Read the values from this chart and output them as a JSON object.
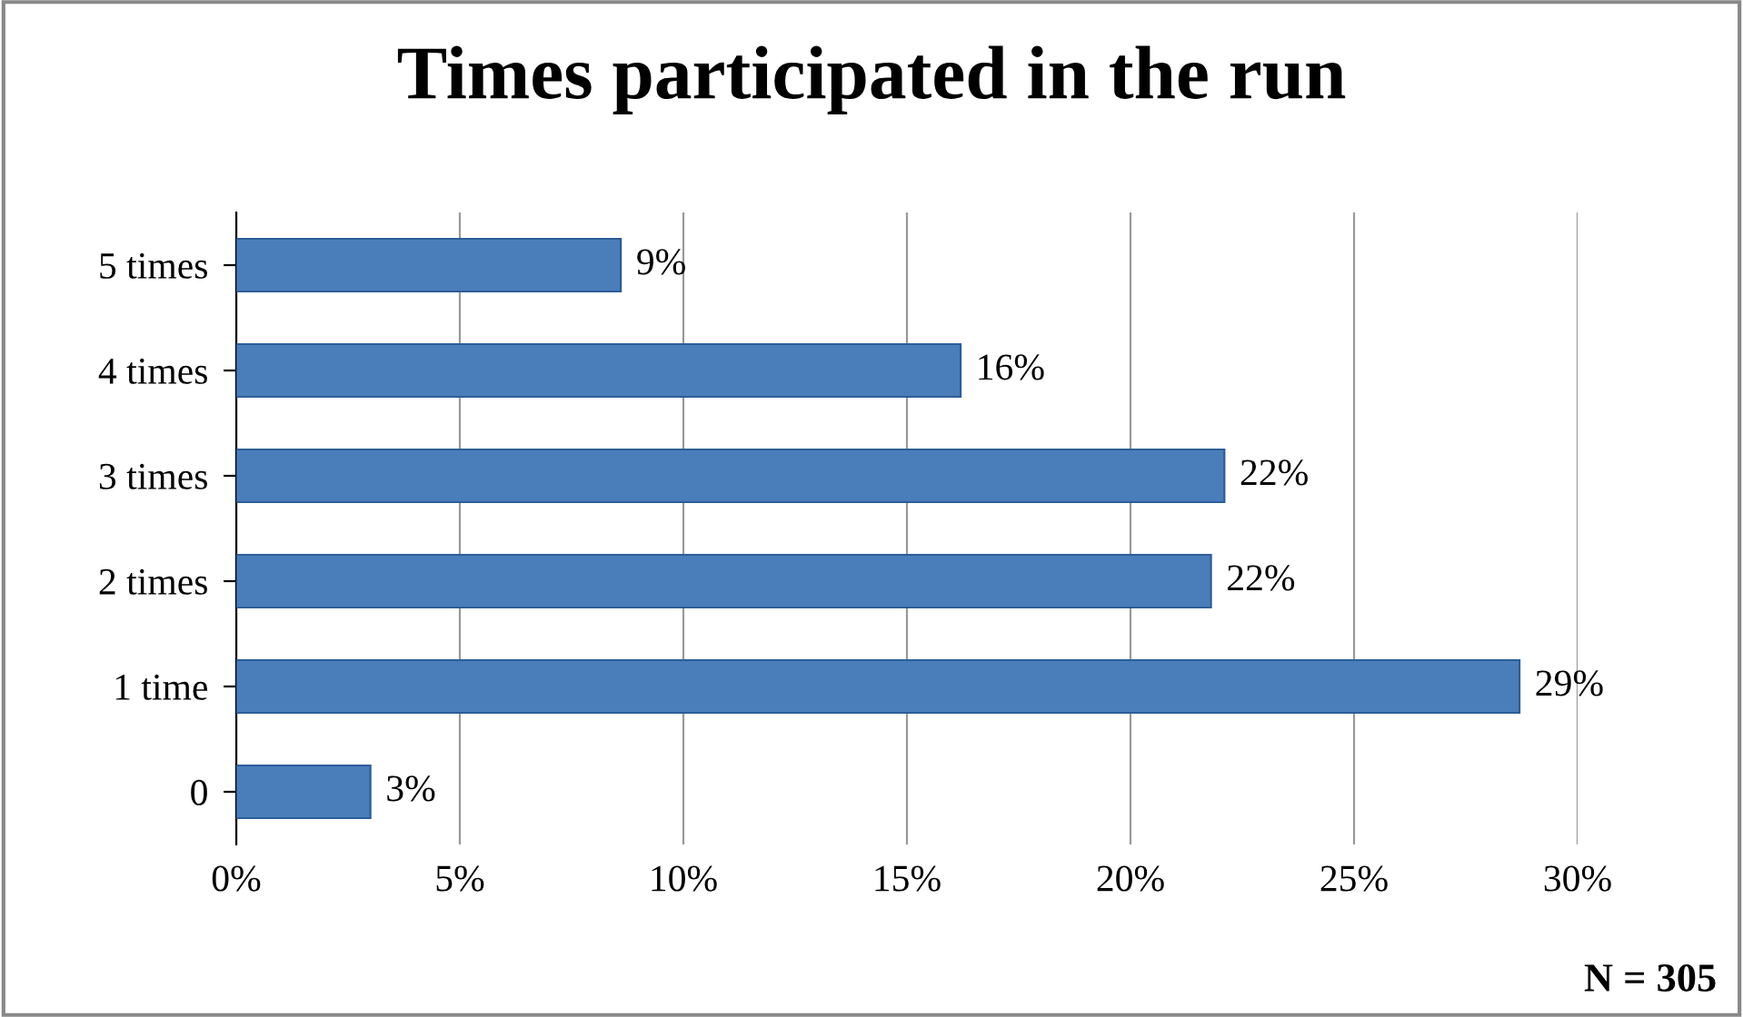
{
  "chart_data": {
    "type": "bar",
    "orientation": "horizontal",
    "title": "Times participated in the run",
    "categories": [
      "5 times",
      "4 times",
      "3 times",
      "2 times",
      "1 time",
      "0"
    ],
    "values": [
      8.6,
      16.2,
      22.1,
      21.8,
      28.7,
      3.0
    ],
    "value_labels": [
      "9%",
      "16%",
      "22%",
      "22%",
      "29%",
      "3%"
    ],
    "color": "#4a7ebb",
    "xlim": [
      0,
      30
    ],
    "xticks": [
      {
        "value": 0,
        "label": "0%"
      },
      {
        "value": 5,
        "label": "5%"
      },
      {
        "value": 10,
        "label": "10%"
      },
      {
        "value": 15,
        "label": "15%"
      },
      {
        "value": 20,
        "label": "20%"
      },
      {
        "value": 25,
        "label": "25%"
      },
      {
        "value": 30,
        "label": "30%"
      }
    ],
    "grid": "x",
    "legend": false,
    "annotations": [
      "N = 305"
    ]
  }
}
